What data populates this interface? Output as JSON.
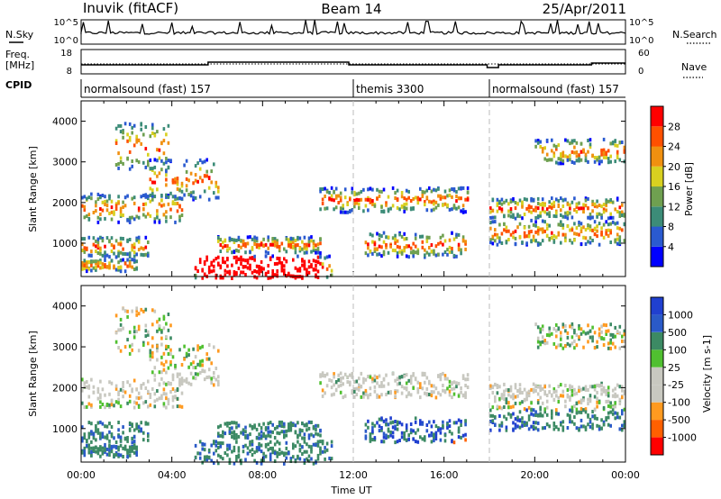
{
  "header": {
    "station": "Inuvik (fitACF)",
    "beam": "Beam 14",
    "date": "25/Apr/2011"
  },
  "left_labels": {
    "nsky": "N.Sky",
    "freq_line1": "Freq.",
    "freq_line2": "[MHz]",
    "cpid": "CPID"
  },
  "right_labels": {
    "nsearch": "N.Search",
    "nave": "Nave"
  },
  "cpid_segments": [
    {
      "label": "normalsound (fast) 157",
      "start_h": 0
    },
    {
      "label": "themis 3300",
      "start_h": 12
    },
    {
      "label": "normalsound (fast) 157",
      "start_h": 18
    }
  ],
  "noise_axis": {
    "left_ticks": [
      "10^5",
      "10^0"
    ],
    "right_ticks": [
      "10^5",
      "10^0"
    ]
  },
  "freq_axis": {
    "left_ticks": [
      "18",
      "8"
    ],
    "right_ticks": [
      "60",
      "0"
    ],
    "ylim": [
      8,
      18
    ],
    "nave_lim": [
      0,
      60
    ]
  },
  "chart_data": [
    {
      "type": "heatmap",
      "name": "power",
      "ylabel": "Slant Range [km]",
      "ylim": [
        180,
        4500
      ],
      "y_ticks": [
        "4000",
        "3000",
        "2000",
        "1000"
      ],
      "x_ticks": [
        "00:00",
        "04:00",
        "08:00",
        "12:00",
        "16:00",
        "20:00",
        "00:00"
      ],
      "xlim_hours": [
        0,
        24
      ],
      "colorbar": {
        "label": "Power [dB]",
        "ticks": [
          "28",
          "24",
          "20",
          "16",
          "12",
          "8",
          "4"
        ],
        "colors": [
          "#0000ff",
          "#2a5ad0",
          "#3c8c78",
          "#6fa050",
          "#d8d020",
          "#f09010",
          "#ff5000",
          "#ff0000"
        ]
      }
    },
    {
      "type": "heatmap",
      "name": "velocity",
      "ylabel": "Slant Range [km]",
      "ylim": [
        180,
        4500
      ],
      "y_ticks": [
        "4000",
        "3000",
        "2000",
        "1000"
      ],
      "x_ticks": [
        "00:00",
        "04:00",
        "08:00",
        "12:00",
        "16:00",
        "20:00",
        "00:00"
      ],
      "xlabel": "Time UT",
      "xlim_hours": [
        0,
        24
      ],
      "colorbar": {
        "label": "Velocity [m s-1]",
        "ticks": [
          "1000",
          "500",
          "100",
          "25",
          "-25",
          "-100",
          "-500",
          "-1000"
        ],
        "colors": [
          "#ff0000",
          "#ff6000",
          "#ff9a20",
          "#c8c8c0",
          "#c8c8c0",
          "#50c030",
          "#3c8a64",
          "#2a5ac8",
          "#2040d0"
        ]
      }
    }
  ]
}
